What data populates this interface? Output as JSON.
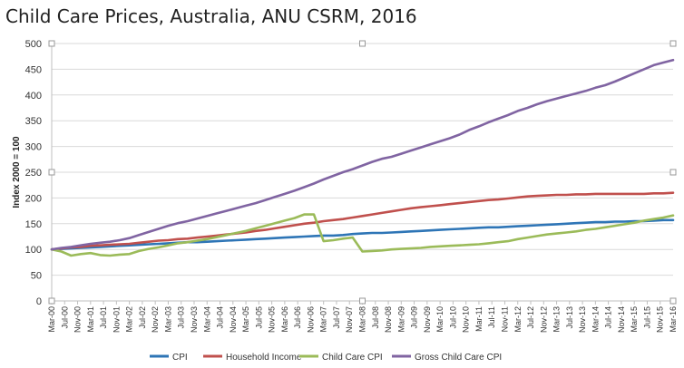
{
  "title": "Child Care Prices, Australia, ANU CSRM, 2016",
  "chart_data": {
    "type": "line",
    "title": "Child Care Prices, Australia, ANU CSRM, 2016",
    "xlabel": "",
    "ylabel": "Index 2000 = 100",
    "ylim": [
      0,
      500
    ],
    "yticks": [
      0,
      50,
      100,
      150,
      200,
      250,
      300,
      350,
      400,
      450,
      500
    ],
    "grid": true,
    "legend_position": "bottom",
    "x": [
      "Mar-00",
      "Jun-00",
      "Sep-00",
      "Dec-00",
      "Mar-01",
      "Jun-01",
      "Sep-01",
      "Dec-01",
      "Mar-02",
      "Jun-02",
      "Sep-02",
      "Dec-02",
      "Mar-03",
      "Jun-03",
      "Sep-03",
      "Dec-03",
      "Mar-04",
      "Jun-04",
      "Sep-04",
      "Dec-04",
      "Mar-05",
      "Jun-05",
      "Sep-05",
      "Dec-05",
      "Mar-06",
      "Jun-06",
      "Sep-06",
      "Dec-06",
      "Mar-07",
      "Jun-07",
      "Sep-07",
      "Dec-07",
      "Mar-08",
      "Jun-08",
      "Sep-08",
      "Dec-08",
      "Mar-09",
      "Jun-09",
      "Sep-09",
      "Dec-09",
      "Mar-10",
      "Jun-10",
      "Sep-10",
      "Dec-10",
      "Mar-11",
      "Jun-11",
      "Sep-11",
      "Dec-11",
      "Mar-12",
      "Jun-12",
      "Sep-12",
      "Dec-12",
      "Mar-13",
      "Jun-13",
      "Sep-13",
      "Dec-13",
      "Mar-14",
      "Jun-14",
      "Sep-14",
      "Dec-14",
      "Mar-15",
      "Jun-15",
      "Sep-15",
      "Dec-15",
      "Mar-16"
    ],
    "xtick_labels": [
      "Mar-00",
      "Jul-00",
      "Nov-00",
      "Mar-01",
      "Jul-01",
      "Nov-01",
      "Mar-02",
      "Jul-02",
      "Nov-02",
      "Mar-03",
      "Jul-03",
      "Nov-03",
      "Mar-04",
      "Jul-04",
      "Nov-04",
      "Mar-05",
      "Jul-05",
      "Nov-05",
      "Mar-06",
      "Jul-06",
      "Nov-06",
      "Mar-07",
      "Jul-07",
      "Nov-07",
      "Mar-08",
      "Jul-08",
      "Nov-08",
      "Mar-09",
      "Jul-09",
      "Nov-09",
      "Mar-10",
      "Jul-10",
      "Nov-10",
      "Mar-11",
      "Jul-11",
      "Nov-11",
      "Mar-12",
      "Jul-12",
      "Nov-12",
      "Mar-13",
      "Jul-13",
      "Nov-13",
      "Mar-14",
      "Jul-14",
      "Nov-14",
      "Mar-15",
      "Jul-15",
      "Nov-15",
      "Mar-16"
    ],
    "series": [
      {
        "name": "CPI",
        "color": "#2e75b6",
        "values": [
          100,
          101,
          102,
          103,
          104,
          105,
          106,
          107,
          108,
          109,
          110,
          111,
          112,
          113,
          114,
          114,
          115,
          116,
          117,
          118,
          119,
          120,
          121,
          122,
          123,
          124,
          125,
          126,
          127,
          127,
          128,
          130,
          131,
          132,
          132,
          133,
          134,
          135,
          136,
          137,
          138,
          139,
          140,
          141,
          142,
          143,
          143,
          144,
          145,
          146,
          147,
          148,
          149,
          150,
          151,
          152,
          153,
          153,
          154,
          154,
          155,
          155,
          156,
          157,
          157
        ]
      },
      {
        "name": "Household Income",
        "color": "#c0504d",
        "values": [
          100,
          102,
          104,
          105,
          107,
          108,
          109,
          110,
          111,
          113,
          115,
          117,
          118,
          120,
          121,
          123,
          125,
          127,
          129,
          131,
          133,
          136,
          138,
          141,
          144,
          147,
          150,
          152,
          155,
          157,
          159,
          162,
          165,
          168,
          171,
          174,
          177,
          180,
          182,
          184,
          186,
          188,
          190,
          192,
          194,
          196,
          197,
          199,
          201,
          203,
          204,
          205,
          206,
          206,
          207,
          207,
          208,
          208,
          208,
          208,
          208,
          208,
          209,
          209,
          210
        ]
      },
      {
        "name": "Child Care CPI",
        "color": "#9bbb59",
        "values": [
          100,
          96,
          88,
          91,
          93,
          89,
          88,
          90,
          91,
          97,
          101,
          104,
          108,
          112,
          114,
          117,
          120,
          124,
          128,
          132,
          136,
          141,
          146,
          151,
          156,
          161,
          168,
          168,
          116,
          118,
          121,
          123,
          96,
          97,
          98,
          100,
          101,
          102,
          103,
          105,
          106,
          107,
          108,
          109,
          110,
          112,
          114,
          116,
          120,
          123,
          126,
          129,
          131,
          133,
          135,
          138,
          140,
          143,
          146,
          149,
          152,
          156,
          159,
          162,
          166
        ]
      },
      {
        "name": "Gross Child Care CPI",
        "color": "#8064a2",
        "values": [
          100,
          103,
          105,
          108,
          111,
          113,
          115,
          118,
          122,
          128,
          134,
          140,
          146,
          151,
          155,
          160,
          165,
          170,
          175,
          180,
          185,
          190,
          196,
          202,
          208,
          214,
          221,
          228,
          236,
          243,
          250,
          256,
          263,
          270,
          276,
          280,
          286,
          292,
          298,
          304,
          310,
          316,
          323,
          332,
          339,
          347,
          354,
          361,
          369,
          375,
          382,
          388,
          393,
          398,
          403,
          408,
          414,
          419,
          426,
          434,
          442,
          450,
          458,
          463,
          468
        ]
      }
    ]
  }
}
